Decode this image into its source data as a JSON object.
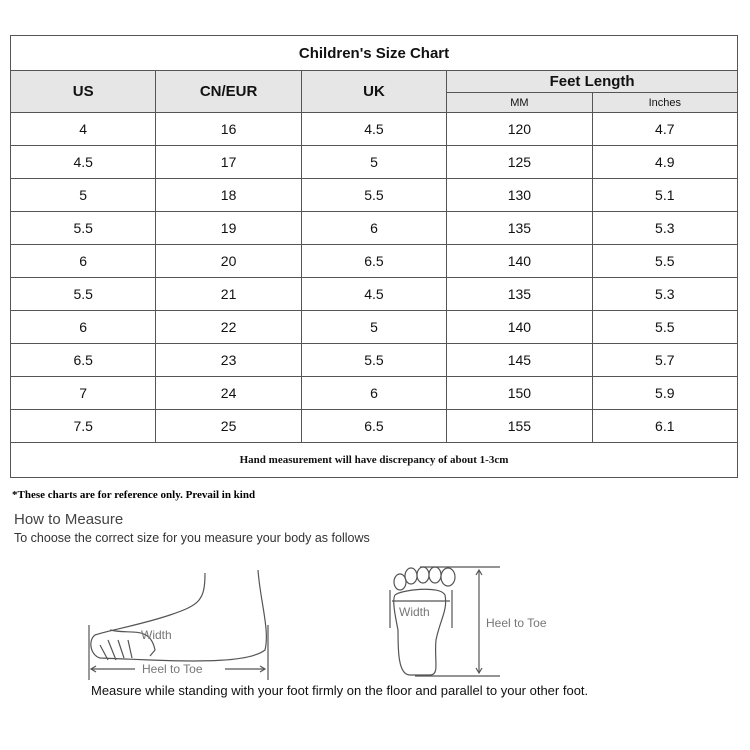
{
  "chart": {
    "title": "Children's Size Chart",
    "headers": {
      "us": "US",
      "cneur": "CN/EUR",
      "uk": "UK",
      "feet": "Feet Length",
      "mm": "MM",
      "inches": "Inches"
    },
    "rows": [
      [
        "4",
        "16",
        "4.5",
        "120",
        "4.7"
      ],
      [
        "4.5",
        "17",
        "5",
        "125",
        "4.9"
      ],
      [
        "5",
        "18",
        "5.5",
        "130",
        "5.1"
      ],
      [
        "5.5",
        "19",
        "6",
        "135",
        "5.3"
      ],
      [
        "6",
        "20",
        "6.5",
        "140",
        "5.5"
      ],
      [
        "5.5",
        "21",
        "4.5",
        "135",
        "5.3"
      ],
      [
        "6",
        "22",
        "5",
        "140",
        "5.5"
      ],
      [
        "6.5",
        "23",
        "5.5",
        "145",
        "5.7"
      ],
      [
        "7",
        "24",
        "6",
        "150",
        "5.9"
      ],
      [
        "7.5",
        "25",
        "6.5",
        "155",
        "6.1"
      ]
    ],
    "footer": "Hand measurement will have discrepancy of about 1-3cm"
  },
  "note": "*These charts are for reference only. Prevail in kind",
  "measure": {
    "heading": "How to Measure",
    "intro": "To choose the correct size for you measure your body as follows",
    "side_width": "Width",
    "side_length": "Heel to Toe",
    "top_width": "Width",
    "top_length": "Heel to Toe",
    "caption": "Measure while standing with your foot firmly on the floor and parallel to your other foot."
  }
}
